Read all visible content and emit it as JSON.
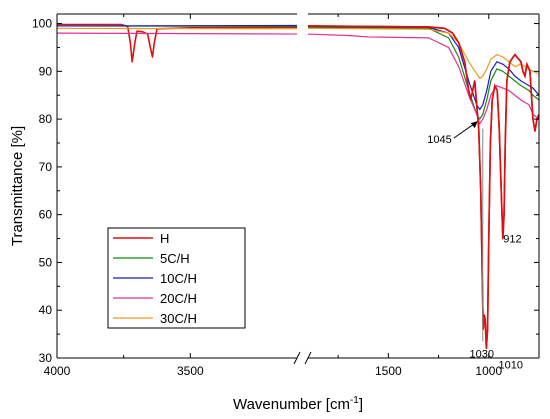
{
  "chart_data": {
    "type": "line",
    "xlabel": "Wavenumber [cm",
    "xlabel_sup": "-1",
    "xlabel_end": "]",
    "ylabel": "Transmittance [%]",
    "ylim": [
      30,
      102
    ],
    "x_reversed": true,
    "x_axis_break": true,
    "x_segments": [
      [
        4000,
        3100
      ],
      [
        1900,
        750
      ]
    ],
    "x_ticks": [
      "4000",
      "3500",
      "1500",
      "1000"
    ],
    "y_ticks": [
      "30",
      "40",
      "50",
      "60",
      "70",
      "80",
      "90",
      "100"
    ],
    "grid": false,
    "legend_placement": "bottom-left",
    "series": [
      {
        "name": "H",
        "color": "#dd1111",
        "points": [
          [
            4000,
            99.8
          ],
          [
            3760,
            99.8
          ],
          [
            3735,
            99.4
          ],
          [
            3725,
            96
          ],
          [
            3718,
            92
          ],
          [
            3708,
            96
          ],
          [
            3700,
            98.4
          ],
          [
            3680,
            98.3
          ],
          [
            3660,
            97.8
          ],
          [
            3650,
            95
          ],
          [
            3642,
            93
          ],
          [
            3635,
            96
          ],
          [
            3625,
            98.9
          ],
          [
            3500,
            99.1
          ],
          [
            3100,
            99.2
          ],
          [
            1900,
            99.5
          ],
          [
            1300,
            99.3
          ],
          [
            1220,
            99
          ],
          [
            1180,
            98
          ],
          [
            1150,
            96
          ],
          [
            1120,
            92
          ],
          [
            1100,
            86
          ],
          [
            1090,
            84
          ],
          [
            1080,
            86
          ],
          [
            1070,
            88
          ],
          [
            1060,
            83
          ],
          [
            1050,
            78
          ],
          [
            1040,
            65
          ],
          [
            1032,
            46
          ],
          [
            1028,
            36
          ],
          [
            1022,
            39
          ],
          [
            1018,
            38
          ],
          [
            1012,
            32
          ],
          [
            1006,
            36
          ],
          [
            1000,
            55
          ],
          [
            992,
            75
          ],
          [
            983,
            84
          ],
          [
            970,
            87
          ],
          [
            958,
            86
          ],
          [
            948,
            78
          ],
          [
            938,
            65
          ],
          [
            930,
            55
          ],
          [
            924,
            60
          ],
          [
            918,
            75
          ],
          [
            910,
            88
          ],
          [
            895,
            92
          ],
          [
            870,
            93.5
          ],
          [
            840,
            92
          ],
          [
            830,
            90
          ],
          [
            820,
            89
          ],
          [
            810,
            91.5
          ],
          [
            795,
            90
          ],
          [
            780,
            80
          ],
          [
            770,
            77.5
          ],
          [
            760,
            80
          ],
          [
            750,
            81
          ]
        ]
      },
      {
        "name": "5C/H",
        "color": "#138a13",
        "points": [
          [
            4000,
            99.5
          ],
          [
            3100,
            99.4
          ],
          [
            1900,
            99.2
          ],
          [
            1300,
            99
          ],
          [
            1200,
            97
          ],
          [
            1150,
            93
          ],
          [
            1100,
            86
          ],
          [
            1060,
            81
          ],
          [
            1045,
            80
          ],
          [
            1030,
            81
          ],
          [
            1010,
            84
          ],
          [
            990,
            88
          ],
          [
            960,
            90.5
          ],
          [
            930,
            90
          ],
          [
            900,
            89
          ],
          [
            870,
            88
          ],
          [
            840,
            87
          ],
          [
            800,
            86
          ],
          [
            780,
            85
          ],
          [
            750,
            84
          ]
        ]
      },
      {
        "name": "10C/H",
        "color": "#1c1cbb",
        "points": [
          [
            4000,
            99.5
          ],
          [
            3100,
            99.6
          ],
          [
            1900,
            99.4
          ],
          [
            1300,
            99.2
          ],
          [
            1200,
            98
          ],
          [
            1150,
            95
          ],
          [
            1100,
            88
          ],
          [
            1060,
            83
          ],
          [
            1045,
            82
          ],
          [
            1030,
            83
          ],
          [
            1010,
            86
          ],
          [
            990,
            90
          ],
          [
            960,
            92
          ],
          [
            930,
            91.5
          ],
          [
            900,
            90.5
          ],
          [
            870,
            89
          ],
          [
            840,
            88
          ],
          [
            800,
            87
          ],
          [
            780,
            86.5
          ],
          [
            750,
            85
          ]
        ]
      },
      {
        "name": "20C/H",
        "color": "#e0309a",
        "points": [
          [
            4000,
            98
          ],
          [
            3100,
            97.8
          ],
          [
            1900,
            97.8
          ],
          [
            1700,
            97.5
          ],
          [
            1600,
            97.2
          ],
          [
            1300,
            97
          ],
          [
            1200,
            95
          ],
          [
            1150,
            91
          ],
          [
            1100,
            85
          ],
          [
            1060,
            81
          ],
          [
            1045,
            79
          ],
          [
            1030,
            80
          ],
          [
            1010,
            82
          ],
          [
            990,
            85
          ],
          [
            960,
            87
          ],
          [
            930,
            86.5
          ],
          [
            900,
            86
          ],
          [
            870,
            85
          ],
          [
            840,
            84
          ],
          [
            800,
            83
          ],
          [
            780,
            81
          ],
          [
            750,
            80
          ]
        ]
      },
      {
        "name": "30C/H",
        "color": "#ee9922",
        "points": [
          [
            4000,
            99
          ],
          [
            3100,
            98.9
          ],
          [
            1900,
            99
          ],
          [
            1300,
            98.8
          ],
          [
            1200,
            98
          ],
          [
            1150,
            96
          ],
          [
            1100,
            92
          ],
          [
            1060,
            89.5
          ],
          [
            1045,
            88.5
          ],
          [
            1030,
            89
          ],
          [
            1010,
            90.5
          ],
          [
            990,
            92.5
          ],
          [
            960,
            93.5
          ],
          [
            930,
            93
          ],
          [
            900,
            92
          ],
          [
            870,
            91
          ],
          [
            840,
            91.5
          ],
          [
            800,
            90.5
          ],
          [
            780,
            90
          ],
          [
            750,
            89.5
          ]
        ]
      }
    ],
    "annotations": [
      {
        "text": "1045",
        "x": 1045,
        "y": 80
      },
      {
        "text": "912",
        "x": 912,
        "y": 55
      },
      {
        "text": "1030",
        "x": 1030,
        "y": 33
      },
      {
        "text": "1010",
        "x": 1010,
        "y": 32
      }
    ]
  }
}
